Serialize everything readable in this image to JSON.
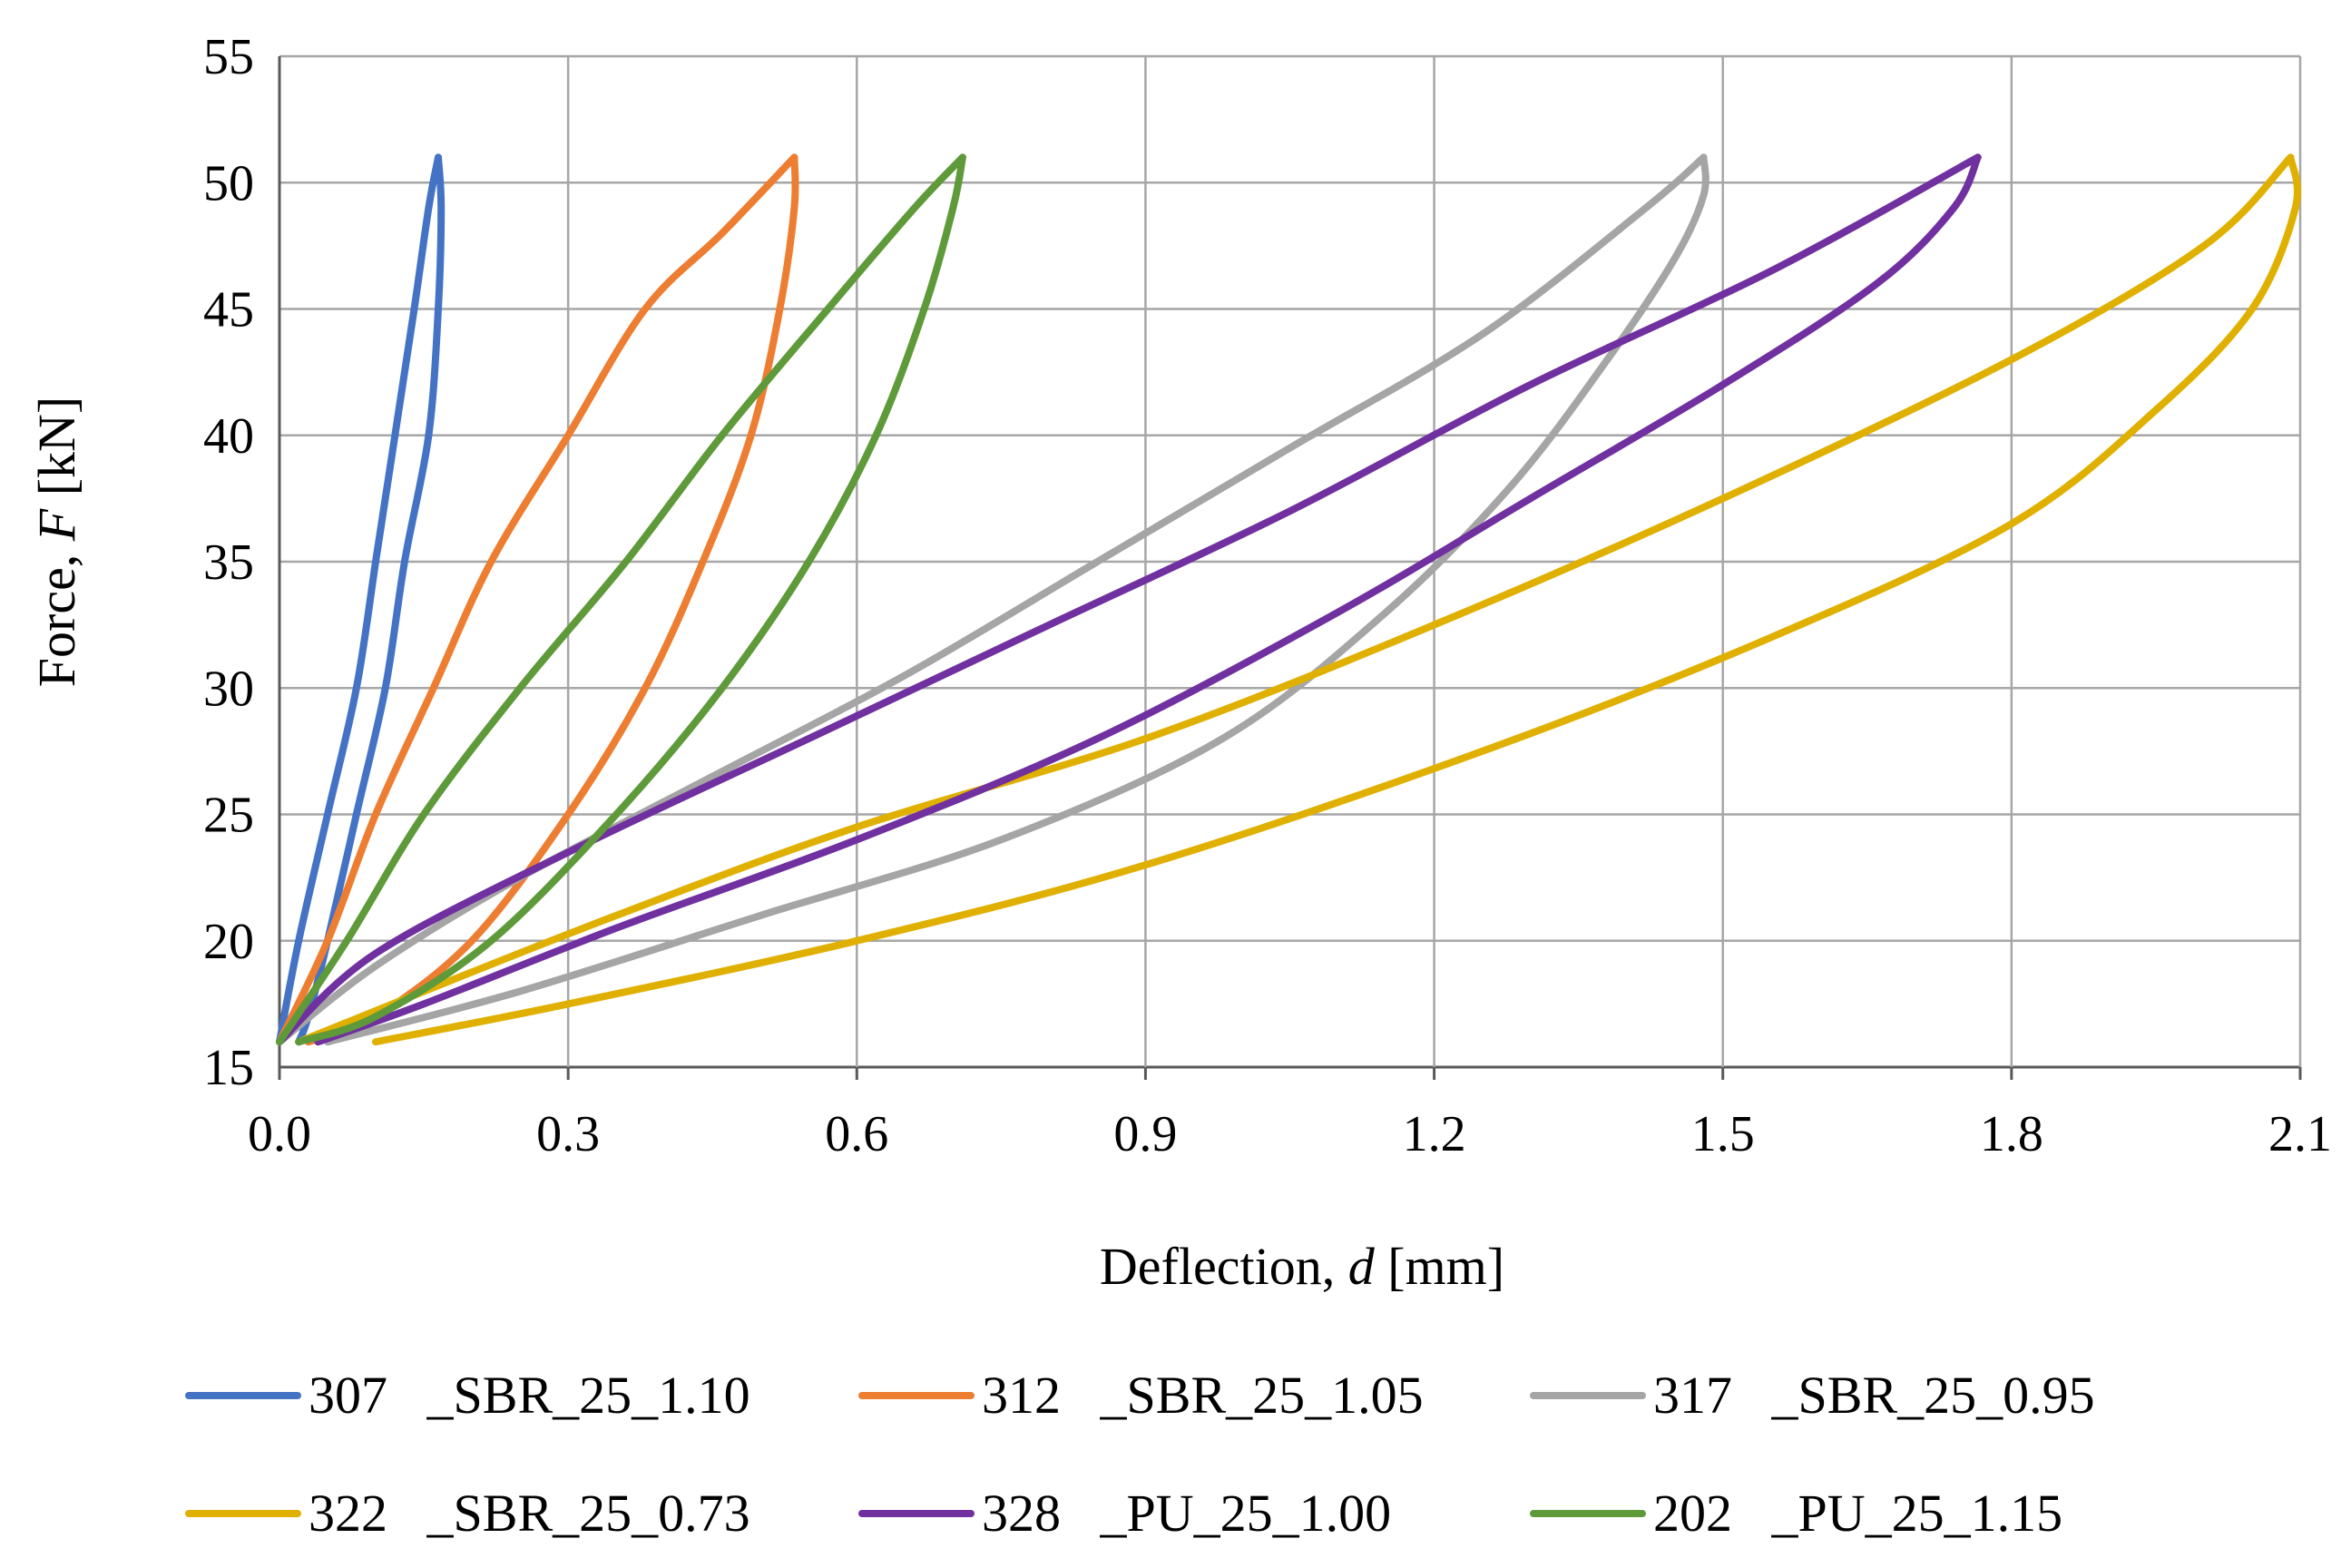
{
  "chart_data": {
    "type": "line",
    "xlabel": "Deflection, ",
    "xlabel_var": "d",
    "xlabel_unit": " [mm]",
    "ylabel": "Force, ",
    "ylabel_var": "F",
    "ylabel_unit": " [kN]",
    "xlim": [
      0.0,
      2.1
    ],
    "ylim": [
      15,
      55
    ],
    "x_ticks": [
      "0.0",
      "0.3",
      "0.6",
      "0.9",
      "1.2",
      "1.5",
      "1.8",
      "2.1"
    ],
    "y_ticks": [
      "15",
      "20",
      "25",
      "30",
      "35",
      "40",
      "45",
      "50",
      "55"
    ],
    "grid": true,
    "legend_position": "bottom",
    "series": [
      {
        "name": "307   _SBR_25_1.10",
        "color": "#4472C4",
        "loading": [
          [
            0.0,
            16
          ],
          [
            0.02,
            20
          ],
          [
            0.05,
            25
          ],
          [
            0.08,
            30
          ],
          [
            0.1,
            35
          ],
          [
            0.12,
            40
          ],
          [
            0.14,
            45
          ],
          [
            0.155,
            49
          ],
          [
            0.165,
            51
          ]
        ],
        "unloading": [
          [
            0.165,
            51
          ],
          [
            0.168,
            49
          ],
          [
            0.165,
            45
          ],
          [
            0.155,
            40
          ],
          [
            0.13,
            35
          ],
          [
            0.11,
            30
          ],
          [
            0.08,
            25
          ],
          [
            0.05,
            20
          ],
          [
            0.03,
            17
          ],
          [
            0.02,
            16
          ]
        ]
      },
      {
        "name": "312   _SBR_25_1.05",
        "color": "#ED7D31",
        "loading": [
          [
            0.0,
            16
          ],
          [
            0.05,
            20
          ],
          [
            0.1,
            25
          ],
          [
            0.16,
            30
          ],
          [
            0.22,
            35
          ],
          [
            0.3,
            40
          ],
          [
            0.38,
            45
          ],
          [
            0.46,
            48
          ],
          [
            0.535,
            51
          ]
        ],
        "unloading": [
          [
            0.535,
            51
          ],
          [
            0.535,
            49
          ],
          [
            0.52,
            45
          ],
          [
            0.49,
            40
          ],
          [
            0.44,
            35
          ],
          [
            0.38,
            30
          ],
          [
            0.3,
            25
          ],
          [
            0.2,
            20
          ],
          [
            0.1,
            17
          ],
          [
            0.03,
            16
          ]
        ]
      },
      {
        "name": "317   _SBR_25_0.95",
        "color": "#A5A5A5",
        "loading": [
          [
            0.0,
            16
          ],
          [
            0.1,
            19
          ],
          [
            0.25,
            22.5
          ],
          [
            0.45,
            26.5
          ],
          [
            0.65,
            30.5
          ],
          [
            0.85,
            35
          ],
          [
            1.05,
            39.5
          ],
          [
            1.25,
            44
          ],
          [
            1.42,
            49
          ],
          [
            1.48,
            51
          ]
        ],
        "unloading": [
          [
            1.48,
            51
          ],
          [
            1.48,
            49.5
          ],
          [
            1.45,
            47
          ],
          [
            1.38,
            43
          ],
          [
            1.28,
            38
          ],
          [
            1.15,
            33
          ],
          [
            0.98,
            28
          ],
          [
            0.75,
            24
          ],
          [
            0.5,
            21
          ],
          [
            0.25,
            18
          ],
          [
            0.05,
            16
          ]
        ]
      },
      {
        "name": "322   _SBR_25_0.73",
        "color": "#E0B000",
        "loading": [
          [
            0.02,
            16
          ],
          [
            0.15,
            18
          ],
          [
            0.35,
            21
          ],
          [
            0.6,
            24.5
          ],
          [
            0.9,
            28
          ],
          [
            1.2,
            32.5
          ],
          [
            1.5,
            37.5
          ],
          [
            1.8,
            43
          ],
          [
            2.0,
            47.5
          ],
          [
            2.09,
            51
          ]
        ],
        "unloading": [
          [
            2.09,
            51
          ],
          [
            2.095,
            49
          ],
          [
            2.05,
            45
          ],
          [
            1.95,
            41
          ],
          [
            1.8,
            36.5
          ],
          [
            1.55,
            32
          ],
          [
            1.25,
            27.5
          ],
          [
            0.9,
            23
          ],
          [
            0.6,
            20
          ],
          [
            0.3,
            17.5
          ],
          [
            0.1,
            16
          ]
        ]
      },
      {
        "name": "328   _PU_25_1.00",
        "color": "#7030A0",
        "loading": [
          [
            0.0,
            16
          ],
          [
            0.1,
            19.5
          ],
          [
            0.3,
            23.5
          ],
          [
            0.55,
            28
          ],
          [
            0.8,
            32.5
          ],
          [
            1.05,
            37
          ],
          [
            1.3,
            42
          ],
          [
            1.55,
            46.5
          ],
          [
            1.765,
            51
          ]
        ],
        "unloading": [
          [
            1.765,
            51
          ],
          [
            1.74,
            49
          ],
          [
            1.66,
            46
          ],
          [
            1.5,
            42
          ],
          [
            1.3,
            37.5
          ],
          [
            1.1,
            33
          ],
          [
            0.85,
            28
          ],
          [
            0.6,
            24
          ],
          [
            0.35,
            20.5
          ],
          [
            0.15,
            17.5
          ],
          [
            0.04,
            16
          ]
        ]
      },
      {
        "name": "202   _PU_25_1.15",
        "color": "#5E9A3A",
        "loading": [
          [
            0.0,
            16
          ],
          [
            0.07,
            20
          ],
          [
            0.15,
            25
          ],
          [
            0.25,
            30
          ],
          [
            0.36,
            35
          ],
          [
            0.46,
            40
          ],
          [
            0.57,
            45
          ],
          [
            0.66,
            49
          ],
          [
            0.71,
            51
          ]
        ],
        "unloading": [
          [
            0.71,
            51
          ],
          [
            0.7,
            49
          ],
          [
            0.67,
            45
          ],
          [
            0.62,
            40
          ],
          [
            0.55,
            35
          ],
          [
            0.46,
            30
          ],
          [
            0.35,
            25
          ],
          [
            0.22,
            20
          ],
          [
            0.1,
            17
          ],
          [
            0.02,
            16
          ]
        ]
      }
    ]
  }
}
